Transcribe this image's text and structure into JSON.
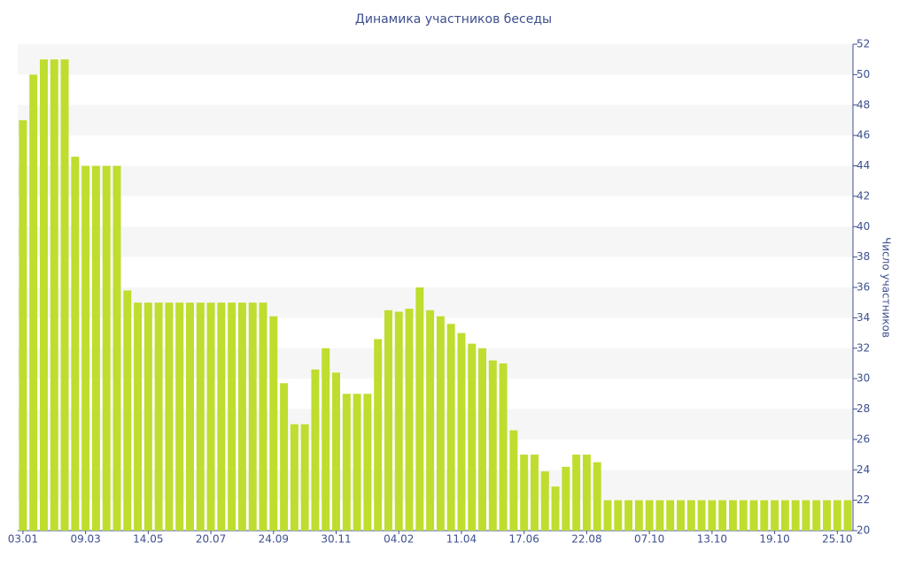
{
  "chart_data": {
    "type": "bar",
    "title": "Динамика участников беседы",
    "y_label": "Число участников",
    "categories": [
      "03.01",
      null,
      null,
      null,
      null,
      null,
      "09.03",
      null,
      null,
      null,
      null,
      null,
      "14.05",
      null,
      null,
      null,
      null,
      null,
      "20.07",
      null,
      null,
      null,
      null,
      null,
      "24.09",
      null,
      null,
      null,
      null,
      null,
      "30.11",
      null,
      null,
      null,
      null,
      null,
      "04.02",
      null,
      null,
      null,
      null,
      null,
      "11.04",
      null,
      null,
      null,
      null,
      null,
      "17.06",
      null,
      null,
      null,
      null,
      null,
      "22.08",
      null,
      null,
      null,
      null,
      null,
      "07.10",
      null,
      null,
      null,
      null,
      null,
      "13.10",
      null,
      null,
      null,
      null,
      null,
      "19.10",
      null,
      null,
      null,
      null,
      null,
      "25.10",
      null
    ],
    "values": [
      47,
      50,
      51,
      51,
      51,
      44.6,
      44,
      44,
      44,
      44,
      35.8,
      35,
      35,
      35,
      35,
      35,
      35,
      35,
      35,
      35,
      35,
      35,
      35,
      35,
      34.1,
      29.7,
      27,
      27,
      30.6,
      32,
      30.4,
      29,
      29,
      29,
      32.6,
      34.5,
      34.4,
      34.6,
      36,
      34.5,
      34.1,
      33.6,
      33,
      32.3,
      32,
      31.2,
      31,
      26.6,
      25,
      25,
      23.9,
      22.9,
      24.2,
      25,
      25,
      24.5,
      22,
      22,
      22,
      22,
      22,
      22,
      22,
      22,
      22,
      22,
      22,
      22,
      22,
      22,
      22,
      22,
      22,
      22,
      22,
      22,
      22,
      22,
      22,
      22
    ],
    "color": "#bedd2e",
    "ylim": [
      20,
      52
    ],
    "yticks": [
      20,
      22,
      24,
      26,
      28,
      30,
      32,
      34,
      36,
      38,
      40,
      42,
      44,
      46,
      48,
      50,
      52
    ],
    "grid": true,
    "y_axis_side": "right"
  }
}
